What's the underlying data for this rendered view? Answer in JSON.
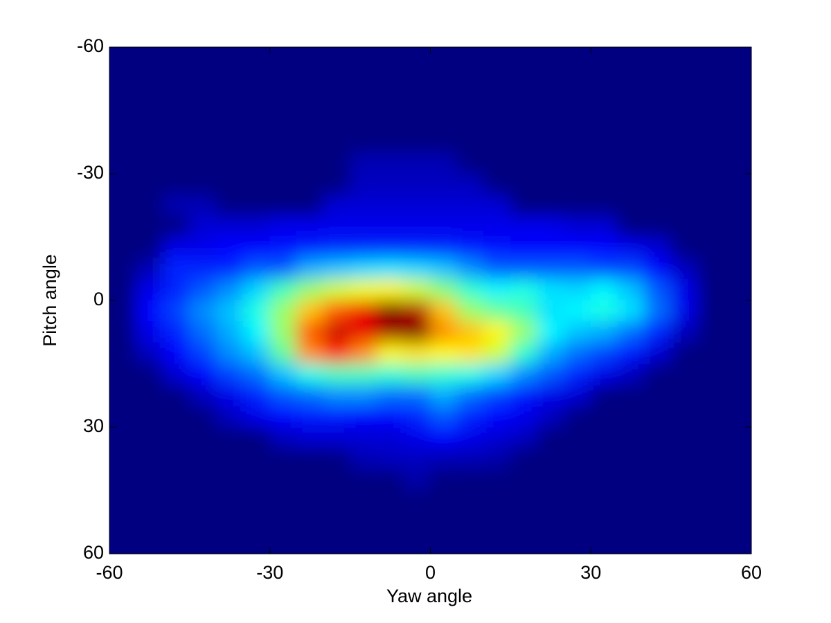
{
  "chart_data": {
    "type": "heatmap",
    "colormap": "jet",
    "y_reversed": true,
    "xlabel": "Yaw angle",
    "ylabel": "Pitch angle",
    "xlim": [
      -60,
      60
    ],
    "ylim": [
      -60,
      60
    ],
    "xticks": [
      -60,
      -30,
      0,
      30,
      60
    ],
    "yticks": [
      -60,
      -30,
      0,
      30,
      60
    ],
    "x": [
      -57.5,
      -52.5,
      -47.5,
      -42.5,
      -37.5,
      -32.5,
      -27.5,
      -22.5,
      -17.5,
      -12.5,
      -7.5,
      -2.5,
      2.5,
      7.5,
      12.5,
      17.5,
      22.5,
      27.5,
      32.5,
      37.5,
      42.5,
      47.5,
      52.5,
      57.5
    ],
    "y": [
      -57.5,
      -52.5,
      -47.5,
      -42.5,
      -37.5,
      -32.5,
      -27.5,
      -22.5,
      -17.5,
      -12.5,
      -7.5,
      -2.5,
      2.5,
      7.5,
      12.5,
      17.5,
      22.5,
      27.5,
      32.5,
      37.5,
      42.5,
      47.5,
      52.5,
      57.5
    ],
    "z": [
      [
        0,
        0,
        0,
        0,
        0,
        0,
        0,
        0,
        0,
        0,
        0,
        0,
        0,
        0,
        0,
        0,
        0,
        0,
        0,
        0,
        0,
        0,
        0,
        0
      ],
      [
        0,
        0,
        0,
        0,
        0,
        0,
        0,
        0,
        0,
        0,
        0,
        0,
        0,
        0,
        0,
        0,
        0,
        0,
        0,
        0,
        0,
        0,
        0,
        0
      ],
      [
        0,
        0,
        0,
        0,
        0,
        0,
        0,
        0,
        0,
        0,
        0,
        0,
        0,
        0,
        0,
        0,
        0,
        0,
        0,
        0,
        0,
        0,
        0,
        0
      ],
      [
        0,
        0,
        0,
        0,
        0,
        0,
        0,
        0,
        0,
        0,
        0,
        0,
        0,
        0,
        0,
        0,
        0,
        0,
        0,
        0,
        0,
        0,
        0,
        0
      ],
      [
        0,
        0,
        0,
        0,
        0,
        0,
        0,
        0,
        0,
        0,
        0,
        0,
        0,
        0,
        0,
        0,
        0,
        0,
        0,
        0,
        0,
        0,
        0,
        0
      ],
      [
        0,
        0,
        0,
        0,
        0,
        0,
        0,
        0,
        0,
        0.05,
        0.05,
        0.05,
        0.05,
        0,
        0,
        0,
        0,
        0,
        0,
        0,
        0,
        0,
        0,
        0
      ],
      [
        0,
        0,
        0,
        0,
        0,
        0,
        0,
        0,
        0,
        0.06,
        0.06,
        0.06,
        0.06,
        0.06,
        0,
        0,
        0,
        0,
        0,
        0,
        0,
        0,
        0,
        0
      ],
      [
        0,
        0,
        0.05,
        0.05,
        0,
        0,
        0,
        0,
        0.08,
        0.08,
        0.08,
        0.08,
        0.08,
        0.08,
        0.08,
        0,
        0,
        0,
        0,
        0,
        0,
        0,
        0,
        0
      ],
      [
        0,
        0,
        0,
        0.08,
        0.08,
        0.08,
        0.1,
        0.1,
        0.1,
        0.1,
        0.1,
        0.1,
        0.1,
        0.1,
        0.1,
        0.1,
        0.1,
        0.08,
        0.08,
        0,
        0,
        0,
        0,
        0
      ],
      [
        0,
        0,
        0.1,
        0.1,
        0.12,
        0.12,
        0.13,
        0.14,
        0.15,
        0.15,
        0.15,
        0.15,
        0.15,
        0.14,
        0.13,
        0.12,
        0.12,
        0.12,
        0.12,
        0.1,
        0.08,
        0,
        0,
        0
      ],
      [
        0,
        0.05,
        0.15,
        0.15,
        0.15,
        0.2,
        0.2,
        0.28,
        0.3,
        0.32,
        0.33,
        0.32,
        0.3,
        0.25,
        0.2,
        0.2,
        0.2,
        0.2,
        0.18,
        0.18,
        0.12,
        0.06,
        0,
        0
      ],
      [
        0,
        0.1,
        0.15,
        0.2,
        0.25,
        0.32,
        0.42,
        0.5,
        0.55,
        0.58,
        0.6,
        0.55,
        0.48,
        0.4,
        0.35,
        0.38,
        0.33,
        0.32,
        0.35,
        0.3,
        0.2,
        0.1,
        0,
        0
      ],
      [
        0,
        0.12,
        0.18,
        0.25,
        0.3,
        0.38,
        0.5,
        0.65,
        0.75,
        0.85,
        0.95,
        0.9,
        0.65,
        0.5,
        0.45,
        0.42,
        0.33,
        0.35,
        0.38,
        0.33,
        0.22,
        0.1,
        0,
        0
      ],
      [
        0,
        0.1,
        0.15,
        0.22,
        0.28,
        0.35,
        0.5,
        0.75,
        0.88,
        0.85,
        0.92,
        0.95,
        0.7,
        0.65,
        0.6,
        0.5,
        0.35,
        0.3,
        0.28,
        0.22,
        0.15,
        0.06,
        0,
        0
      ],
      [
        0,
        0.06,
        0.12,
        0.18,
        0.25,
        0.3,
        0.45,
        0.7,
        0.8,
        0.7,
        0.6,
        0.62,
        0.6,
        0.62,
        0.55,
        0.4,
        0.28,
        0.22,
        0.18,
        0.14,
        0.08,
        0,
        0,
        0
      ],
      [
        0,
        0,
        0.08,
        0.12,
        0.18,
        0.22,
        0.3,
        0.38,
        0.42,
        0.42,
        0.4,
        0.42,
        0.4,
        0.38,
        0.32,
        0.25,
        0.2,
        0.15,
        0.1,
        0.06,
        0,
        0,
        0,
        0
      ],
      [
        0,
        0,
        0,
        0.06,
        0.1,
        0.15,
        0.2,
        0.22,
        0.25,
        0.25,
        0.22,
        0.22,
        0.28,
        0.22,
        0.18,
        0.14,
        0.1,
        0.08,
        0,
        0,
        0,
        0,
        0,
        0
      ],
      [
        0,
        0,
        0,
        0,
        0.06,
        0.1,
        0.12,
        0.14,
        0.14,
        0.12,
        0.12,
        0.15,
        0.2,
        0.15,
        0.12,
        0.1,
        0.06,
        0,
        0,
        0,
        0,
        0,
        0,
        0
      ],
      [
        0,
        0,
        0,
        0,
        0,
        0,
        0.06,
        0.08,
        0.08,
        0.08,
        0.08,
        0.1,
        0.12,
        0.1,
        0.08,
        0.06,
        0,
        0,
        0,
        0,
        0,
        0,
        0,
        0
      ],
      [
        0,
        0,
        0,
        0,
        0,
        0,
        0,
        0,
        0,
        0.05,
        0.06,
        0.06,
        0.05,
        0.05,
        0.04,
        0,
        0,
        0,
        0,
        0,
        0,
        0,
        0,
        0
      ],
      [
        0,
        0,
        0,
        0,
        0,
        0,
        0,
        0,
        0,
        0,
        0,
        0.04,
        0,
        0,
        0,
        0,
        0,
        0,
        0,
        0,
        0,
        0,
        0,
        0
      ],
      [
        0,
        0,
        0,
        0,
        0,
        0,
        0,
        0,
        0,
        0,
        0,
        0,
        0,
        0,
        0,
        0,
        0,
        0,
        0,
        0,
        0,
        0,
        0,
        0
      ],
      [
        0,
        0,
        0,
        0,
        0,
        0,
        0,
        0,
        0,
        0,
        0,
        0,
        0,
        0,
        0,
        0,
        0,
        0,
        0,
        0,
        0,
        0,
        0,
        0
      ],
      [
        0,
        0,
        0,
        0,
        0,
        0,
        0,
        0,
        0,
        0,
        0,
        0,
        0,
        0,
        0,
        0,
        0,
        0,
        0,
        0,
        0,
        0,
        0,
        0
      ]
    ]
  }
}
